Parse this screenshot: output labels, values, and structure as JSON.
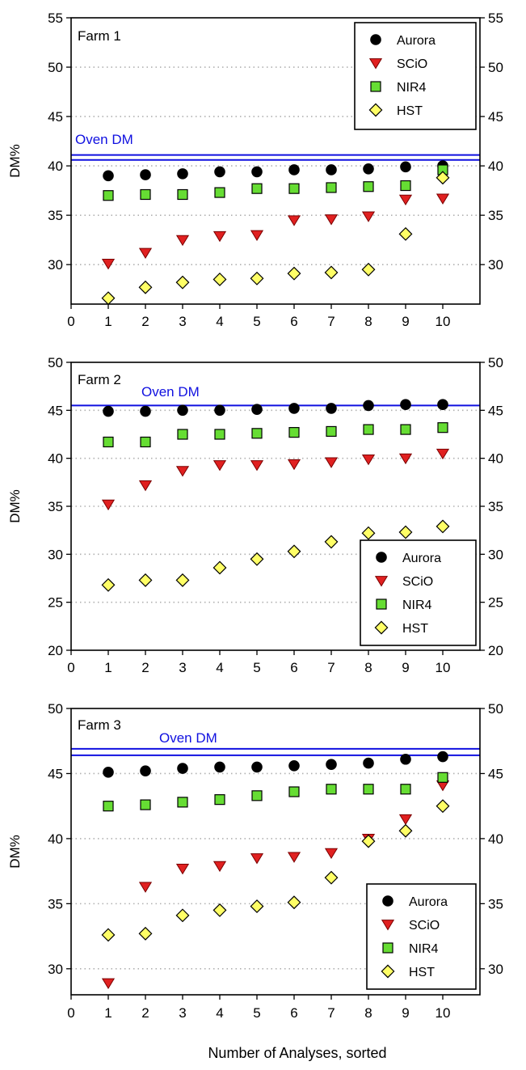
{
  "chart_data": [
    {
      "type": "scatter",
      "panel_label": "Farm 1",
      "ylabel": "DM%",
      "xlabel": "",
      "xlim": [
        0,
        11
      ],
      "ylim": [
        26,
        55
      ],
      "yticks": [
        30,
        35,
        40,
        45,
        50,
        55
      ],
      "xticks": [
        0,
        1,
        2,
        3,
        4,
        5,
        6,
        7,
        8,
        9,
        10
      ],
      "grid": "horizontal dotted",
      "legend": "top-right",
      "reference": {
        "label": "Oven DM",
        "lines": [
          40.6,
          41.1
        ],
        "color": "#1010e0"
      },
      "x": [
        1,
        2,
        3,
        4,
        5,
        6,
        7,
        8,
        9,
        10
      ],
      "series": [
        {
          "name": "Aurora",
          "marker": "circle",
          "color": "#000000",
          "values": [
            39.0,
            39.1,
            39.2,
            39.4,
            39.4,
            39.6,
            39.6,
            39.7,
            39.9,
            40.0
          ]
        },
        {
          "name": "SCiO",
          "marker": "triangle-down",
          "color": "#e02020",
          "values": [
            30.1,
            31.2,
            32.5,
            32.9,
            33.0,
            34.5,
            34.6,
            34.9,
            36.6,
            36.7
          ]
        },
        {
          "name": "NIR4",
          "marker": "square",
          "color": "#66dd33",
          "values": [
            37.0,
            37.1,
            37.1,
            37.3,
            37.7,
            37.7,
            37.8,
            37.9,
            38.0,
            39.6
          ]
        },
        {
          "name": "HST",
          "marker": "diamond",
          "color": "#ffff66",
          "values": [
            26.6,
            27.7,
            28.2,
            28.5,
            28.6,
            29.1,
            29.2,
            29.5,
            33.1,
            38.8
          ]
        }
      ]
    },
    {
      "type": "scatter",
      "panel_label": "Farm 2",
      "ylabel": "DM%",
      "xlabel": "",
      "xlim": [
        0,
        11
      ],
      "ylim": [
        20,
        50
      ],
      "yticks": [
        20,
        25,
        30,
        35,
        40,
        45,
        50
      ],
      "xticks": [
        0,
        1,
        2,
        3,
        4,
        5,
        6,
        7,
        8,
        9,
        10
      ],
      "grid": "horizontal dotted",
      "legend": "bottom-right",
      "reference": {
        "label": "Oven DM",
        "lines": [
          45.5
        ],
        "color": "#1010e0"
      },
      "x": [
        1,
        2,
        3,
        4,
        5,
        6,
        7,
        8,
        9,
        10
      ],
      "series": [
        {
          "name": "Aurora",
          "marker": "circle",
          "color": "#000000",
          "values": [
            44.9,
            44.9,
            45.0,
            45.0,
            45.1,
            45.2,
            45.2,
            45.5,
            45.6,
            45.6
          ]
        },
        {
          "name": "SCiO",
          "marker": "triangle-down",
          "color": "#e02020",
          "values": [
            35.2,
            37.2,
            38.7,
            39.3,
            39.3,
            39.4,
            39.6,
            39.9,
            40.0,
            40.5
          ]
        },
        {
          "name": "NIR4",
          "marker": "square",
          "color": "#66dd33",
          "values": [
            41.7,
            41.7,
            42.5,
            42.5,
            42.6,
            42.7,
            42.8,
            43.0,
            43.0,
            43.2
          ]
        },
        {
          "name": "HST",
          "marker": "diamond",
          "color": "#ffff66",
          "values": [
            26.8,
            27.3,
            27.3,
            28.6,
            29.5,
            30.3,
            31.3,
            32.2,
            32.3,
            32.9
          ]
        }
      ]
    },
    {
      "type": "scatter",
      "panel_label": "Farm 3",
      "ylabel": "DM%",
      "xlabel": "Number of Analyses, sorted",
      "xlim": [
        0,
        11
      ],
      "ylim": [
        28,
        50
      ],
      "yticks": [
        30,
        35,
        40,
        45,
        50
      ],
      "xticks": [
        0,
        1,
        2,
        3,
        4,
        5,
        6,
        7,
        8,
        9,
        10
      ],
      "grid": "horizontal dotted",
      "legend": "bottom-right",
      "reference": {
        "label": "Oven DM",
        "lines": [
          46.4,
          46.9
        ],
        "color": "#1010e0"
      },
      "x": [
        1,
        2,
        3,
        4,
        5,
        6,
        7,
        8,
        9,
        10
      ],
      "series": [
        {
          "name": "Aurora",
          "marker": "circle",
          "color": "#000000",
          "values": [
            45.1,
            45.2,
            45.4,
            45.5,
            45.5,
            45.6,
            45.7,
            45.8,
            46.1,
            46.3
          ]
        },
        {
          "name": "SCiO",
          "marker": "triangle-down",
          "color": "#e02020",
          "values": [
            28.9,
            36.3,
            37.7,
            37.9,
            38.5,
            38.6,
            38.9,
            40.0,
            41.5,
            44.1
          ]
        },
        {
          "name": "NIR4",
          "marker": "square",
          "color": "#66dd33",
          "values": [
            42.5,
            42.6,
            42.8,
            43.0,
            43.3,
            43.6,
            43.8,
            43.8,
            43.8,
            44.7
          ]
        },
        {
          "name": "HST",
          "marker": "diamond",
          "color": "#ffff66",
          "values": [
            32.6,
            32.7,
            34.1,
            34.5,
            34.8,
            35.1,
            37.0,
            39.8,
            40.6,
            42.5
          ]
        }
      ]
    }
  ]
}
